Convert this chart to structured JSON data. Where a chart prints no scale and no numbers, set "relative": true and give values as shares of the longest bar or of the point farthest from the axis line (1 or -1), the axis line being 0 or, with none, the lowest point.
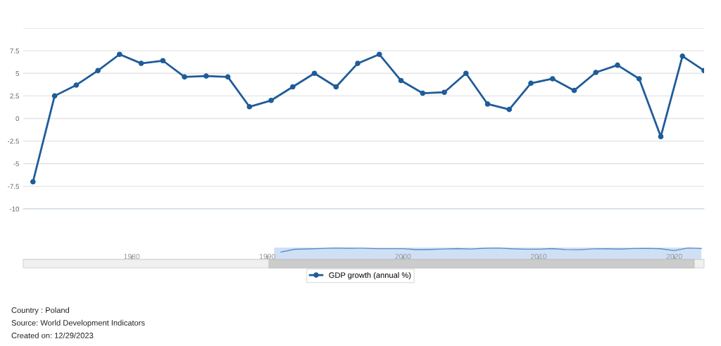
{
  "chart_data": [
    {
      "type": "line",
      "categories": [
        null,
        null,
        null,
        null,
        null,
        null,
        null,
        null,
        null,
        null,
        null,
        null,
        null,
        null,
        null,
        null,
        null,
        null,
        null,
        null,
        null,
        null,
        null,
        null,
        null,
        null,
        null,
        null,
        null,
        null,
        null,
        null
      ],
      "series": [
        {
          "name": "GDP growth (annual %)",
          "color": "#1f5c99",
          "values": [
            -7.0,
            2.5,
            3.7,
            5.3,
            7.1,
            6.1,
            6.4,
            4.6,
            4.7,
            4.6,
            1.3,
            2.0,
            3.5,
            5.0,
            3.5,
            6.1,
            7.1,
            4.2,
            2.8,
            2.9,
            5.0,
            1.6,
            1.0,
            3.9,
            4.4,
            3.1,
            5.1,
            5.9,
            4.4,
            -2.0,
            6.9,
            5.3
          ]
        }
      ],
      "ylim": [
        -10,
        10
      ],
      "yticks": [
        -10,
        -7.5,
        -5,
        -2.5,
        0,
        2.5,
        5,
        7.5,
        {
          "value": 10,
          "label": null
        }
      ],
      "tick_labels": "y",
      "grid": "y",
      "marker": "circle",
      "line_style": "solid",
      "legend": "bottom",
      "annotations": [
        "Country : Poland",
        "Source: World Development Indicators",
        "Created on: 12/29/2023"
      ]
    },
    {
      "type": "line",
      "relative": true,
      "x": [
        1991,
        1992,
        1993,
        1994,
        1995,
        1996,
        1997,
        1998,
        1999,
        2000,
        2001,
        2002,
        2003,
        2004,
        2005,
        2006,
        2007,
        2008,
        2009,
        2010,
        2011,
        2012,
        2013,
        2014,
        2015,
        2016,
        2017,
        2018,
        2019,
        2020,
        2021,
        2022
      ],
      "series": [
        {
          "color": "#5b8fcc",
          "values": [
            0,
            0.674,
            0.759,
            0.872,
            1,
            0.929,
            0.95,
            0.823,
            0.83,
            0.823,
            0.589,
            0.638,
            0.745,
            0.851,
            0.745,
            0.929,
            1,
            0.794,
            0.695,
            0.702,
            0.851,
            0.61,
            0.567,
            0.773,
            0.809,
            0.716,
            0.858,
            0.915,
            0.809,
            0.355,
            0.986,
            0.872
          ]
        }
      ],
      "xlim": [
        1972,
        2022.2
      ],
      "xticks": [
        1980,
        1990,
        2000,
        2010,
        2020
      ],
      "tick_labels": "x",
      "marker": "none",
      "bands": [
        {
          "axis": "x",
          "from": 1990.5,
          "to": 2022,
          "color": "#cfe0f5"
        }
      ]
    }
  ]
}
